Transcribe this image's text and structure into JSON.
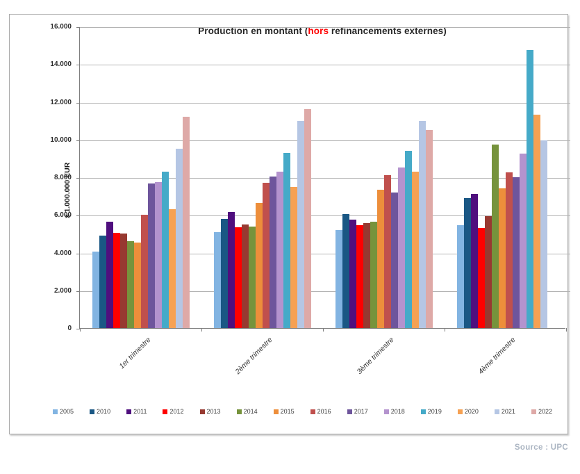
{
  "chart": {
    "title_prefix": "Production en montant (",
    "title_highlight": "hors",
    "title_suffix": " refinancements externes)",
    "highlight_color": "#ff0000",
    "y_axis_title": "x 1.000.000 EUR",
    "y_tick_labels": [
      "16.000",
      "14.000",
      "12.000",
      "10.000",
      "8.000",
      "6.000",
      "4.000",
      "2.000",
      "0"
    ]
  },
  "source_note": "Source : UPC",
  "chart_data": {
    "type": "bar",
    "title": "Production en montant (hors refinancements externes)",
    "ylabel": "x 1.000.000 EUR",
    "unit": "x 1.000.000 EUR",
    "ylim": [
      0,
      16000
    ],
    "ytick_step": 2000,
    "grid": true,
    "legend_position": "bottom",
    "categories": [
      "1er trimestre",
      "2ème trimestre",
      "3ème trimestre",
      "4ème trimestre"
    ],
    "series": [
      {
        "name": "2005",
        "color": "#82b4e2",
        "values": [
          4050,
          5100,
          5200,
          5450
        ]
      },
      {
        "name": "2010",
        "color": "#1a5784",
        "values": [
          4900,
          5800,
          6050,
          6900
        ]
      },
      {
        "name": "2011",
        "color": "#4f0f7e",
        "values": [
          5650,
          6150,
          5750,
          7100
        ]
      },
      {
        "name": "2012",
        "color": "#fe0000",
        "values": [
          5050,
          5350,
          5450,
          5300
        ]
      },
      {
        "name": "2013",
        "color": "#973931",
        "values": [
          5000,
          5500,
          5550,
          5950
        ]
      },
      {
        "name": "2014",
        "color": "#76933c",
        "values": [
          4600,
          5400,
          5650,
          9750
        ]
      },
      {
        "name": "2015",
        "color": "#ed8e3b",
        "values": [
          4550,
          6650,
          7350,
          7400
        ]
      },
      {
        "name": "2016",
        "color": "#c0504d",
        "values": [
          6000,
          7700,
          8100,
          8250
        ]
      },
      {
        "name": "2017",
        "color": "#6e559c",
        "values": [
          7650,
          8050,
          7200,
          8000
        ]
      },
      {
        "name": "2018",
        "color": "#b493ce",
        "values": [
          7750,
          8300,
          8500,
          9250
        ]
      },
      {
        "name": "2019",
        "color": "#45aac8",
        "values": [
          8300,
          9300,
          9400,
          14750
        ]
      },
      {
        "name": "2020",
        "color": "#f6a153",
        "values": [
          6300,
          7500,
          8300,
          11300
        ]
      },
      {
        "name": "2021",
        "color": "#b5c6e4",
        "values": [
          9500,
          11000,
          11000,
          9950
        ]
      },
      {
        "name": "2022",
        "color": "#dea9a7",
        "values": [
          11200,
          11600,
          10500,
          null
        ]
      }
    ]
  }
}
